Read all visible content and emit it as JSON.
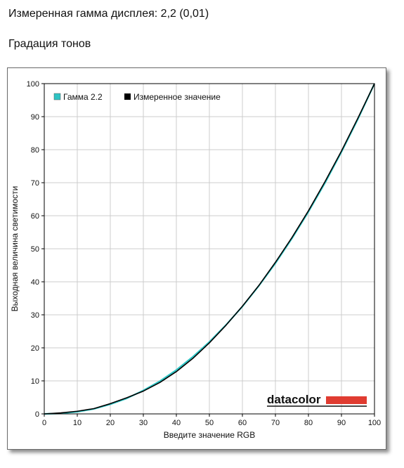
{
  "header": {
    "gamma_line": "Измеренная гамма дисплея: 2,2 (0,01)",
    "section_title": "Градация тонов"
  },
  "logo": {
    "text": "datacolor",
    "accent_color": "#e03c31"
  },
  "chart_data": {
    "type": "line",
    "title": "",
    "xlabel": "Введите значение RGB",
    "ylabel": "Выходная величина светимости",
    "xlim": [
      0,
      100
    ],
    "ylim": [
      0,
      100
    ],
    "xticks": [
      0,
      10,
      20,
      30,
      40,
      50,
      60,
      70,
      80,
      90,
      100
    ],
    "yticks": [
      0,
      10,
      20,
      30,
      40,
      50,
      60,
      70,
      80,
      90,
      100
    ],
    "grid": true,
    "legend_position": "top-left",
    "series": [
      {
        "name": "Гамма 2.2",
        "color": "#2ec4c4",
        "x": [
          0,
          5,
          10,
          15,
          20,
          25,
          30,
          35,
          40,
          45,
          50,
          55,
          60,
          65,
          70,
          75,
          80,
          85,
          90,
          95,
          100
        ],
        "y": [
          0,
          0.14,
          0.63,
          1.5,
          2.9,
          4.7,
          7.1,
          9.9,
          13.3,
          17.3,
          21.8,
          26.9,
          32.5,
          38.8,
          45.6,
          53.1,
          61.2,
          69.9,
          79.3,
          89.3,
          100
        ]
      },
      {
        "name": "Измеренное значение",
        "color": "#000000",
        "x": [
          0,
          5,
          10,
          15,
          20,
          25,
          30,
          35,
          40,
          45,
          50,
          55,
          60,
          65,
          70,
          75,
          80,
          85,
          90,
          95,
          100
        ],
        "y": [
          0,
          0.3,
          0.8,
          1.6,
          3.1,
          4.9,
          6.9,
          9.5,
          12.8,
          16.8,
          21.5,
          26.8,
          32.6,
          38.9,
          45.9,
          53.4,
          61.5,
          70.3,
          79.6,
          89.6,
          100
        ]
      }
    ]
  }
}
